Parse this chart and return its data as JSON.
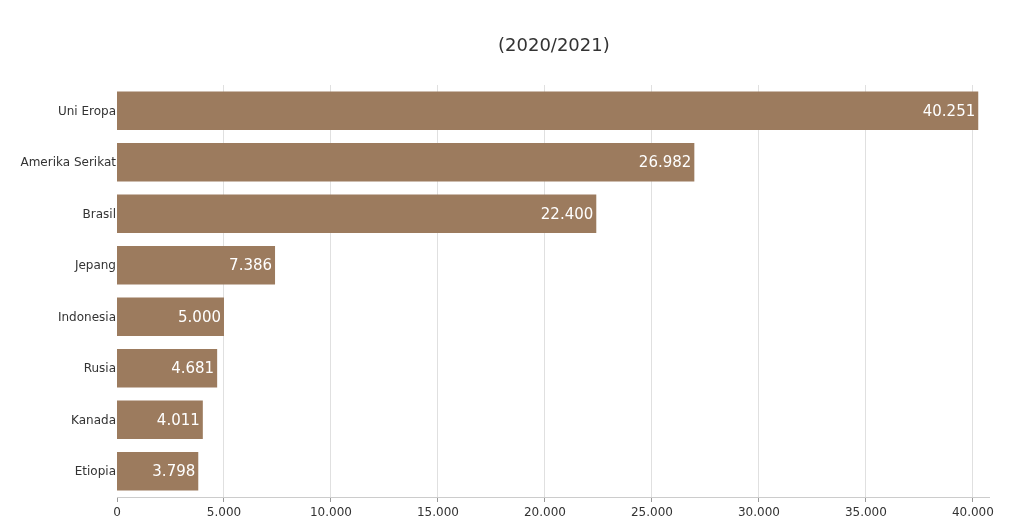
{
  "chart_data": {
    "type": "bar",
    "orientation": "horizontal",
    "subtitle": "(2020/2021)",
    "categories": [
      "Uni Eropa",
      "Amerika Serikat",
      "Brasil",
      "Jepang",
      "Indonesia",
      "Rusia",
      "Kanada",
      "Etiopia"
    ],
    "values": [
      40251,
      26982,
      22400,
      7386,
      5000,
      4681,
      4011,
      3798
    ],
    "value_labels": [
      "40.251",
      "26.982",
      "22.400",
      "7.386",
      "5.000",
      "4.681",
      "4.011",
      "3.798"
    ],
    "color": "#9c7b5e",
    "xlim": [
      0,
      40800
    ],
    "xticks": [
      0,
      {
        "value": 5000,
        "label": "5.000"
      },
      {
        "value": 10000,
        "label": "10.000"
      },
      {
        "value": 15000,
        "label": "15.000"
      },
      {
        "value": 20000,
        "label": "20.000"
      },
      {
        "value": 25000,
        "label": "25.000"
      },
      {
        "value": 30000,
        "label": "30.000"
      },
      {
        "value": 35000,
        "label": "35.000"
      },
      {
        "value": 40000,
        "label": "40.000"
      }
    ],
    "grid": "x",
    "legend": false
  }
}
